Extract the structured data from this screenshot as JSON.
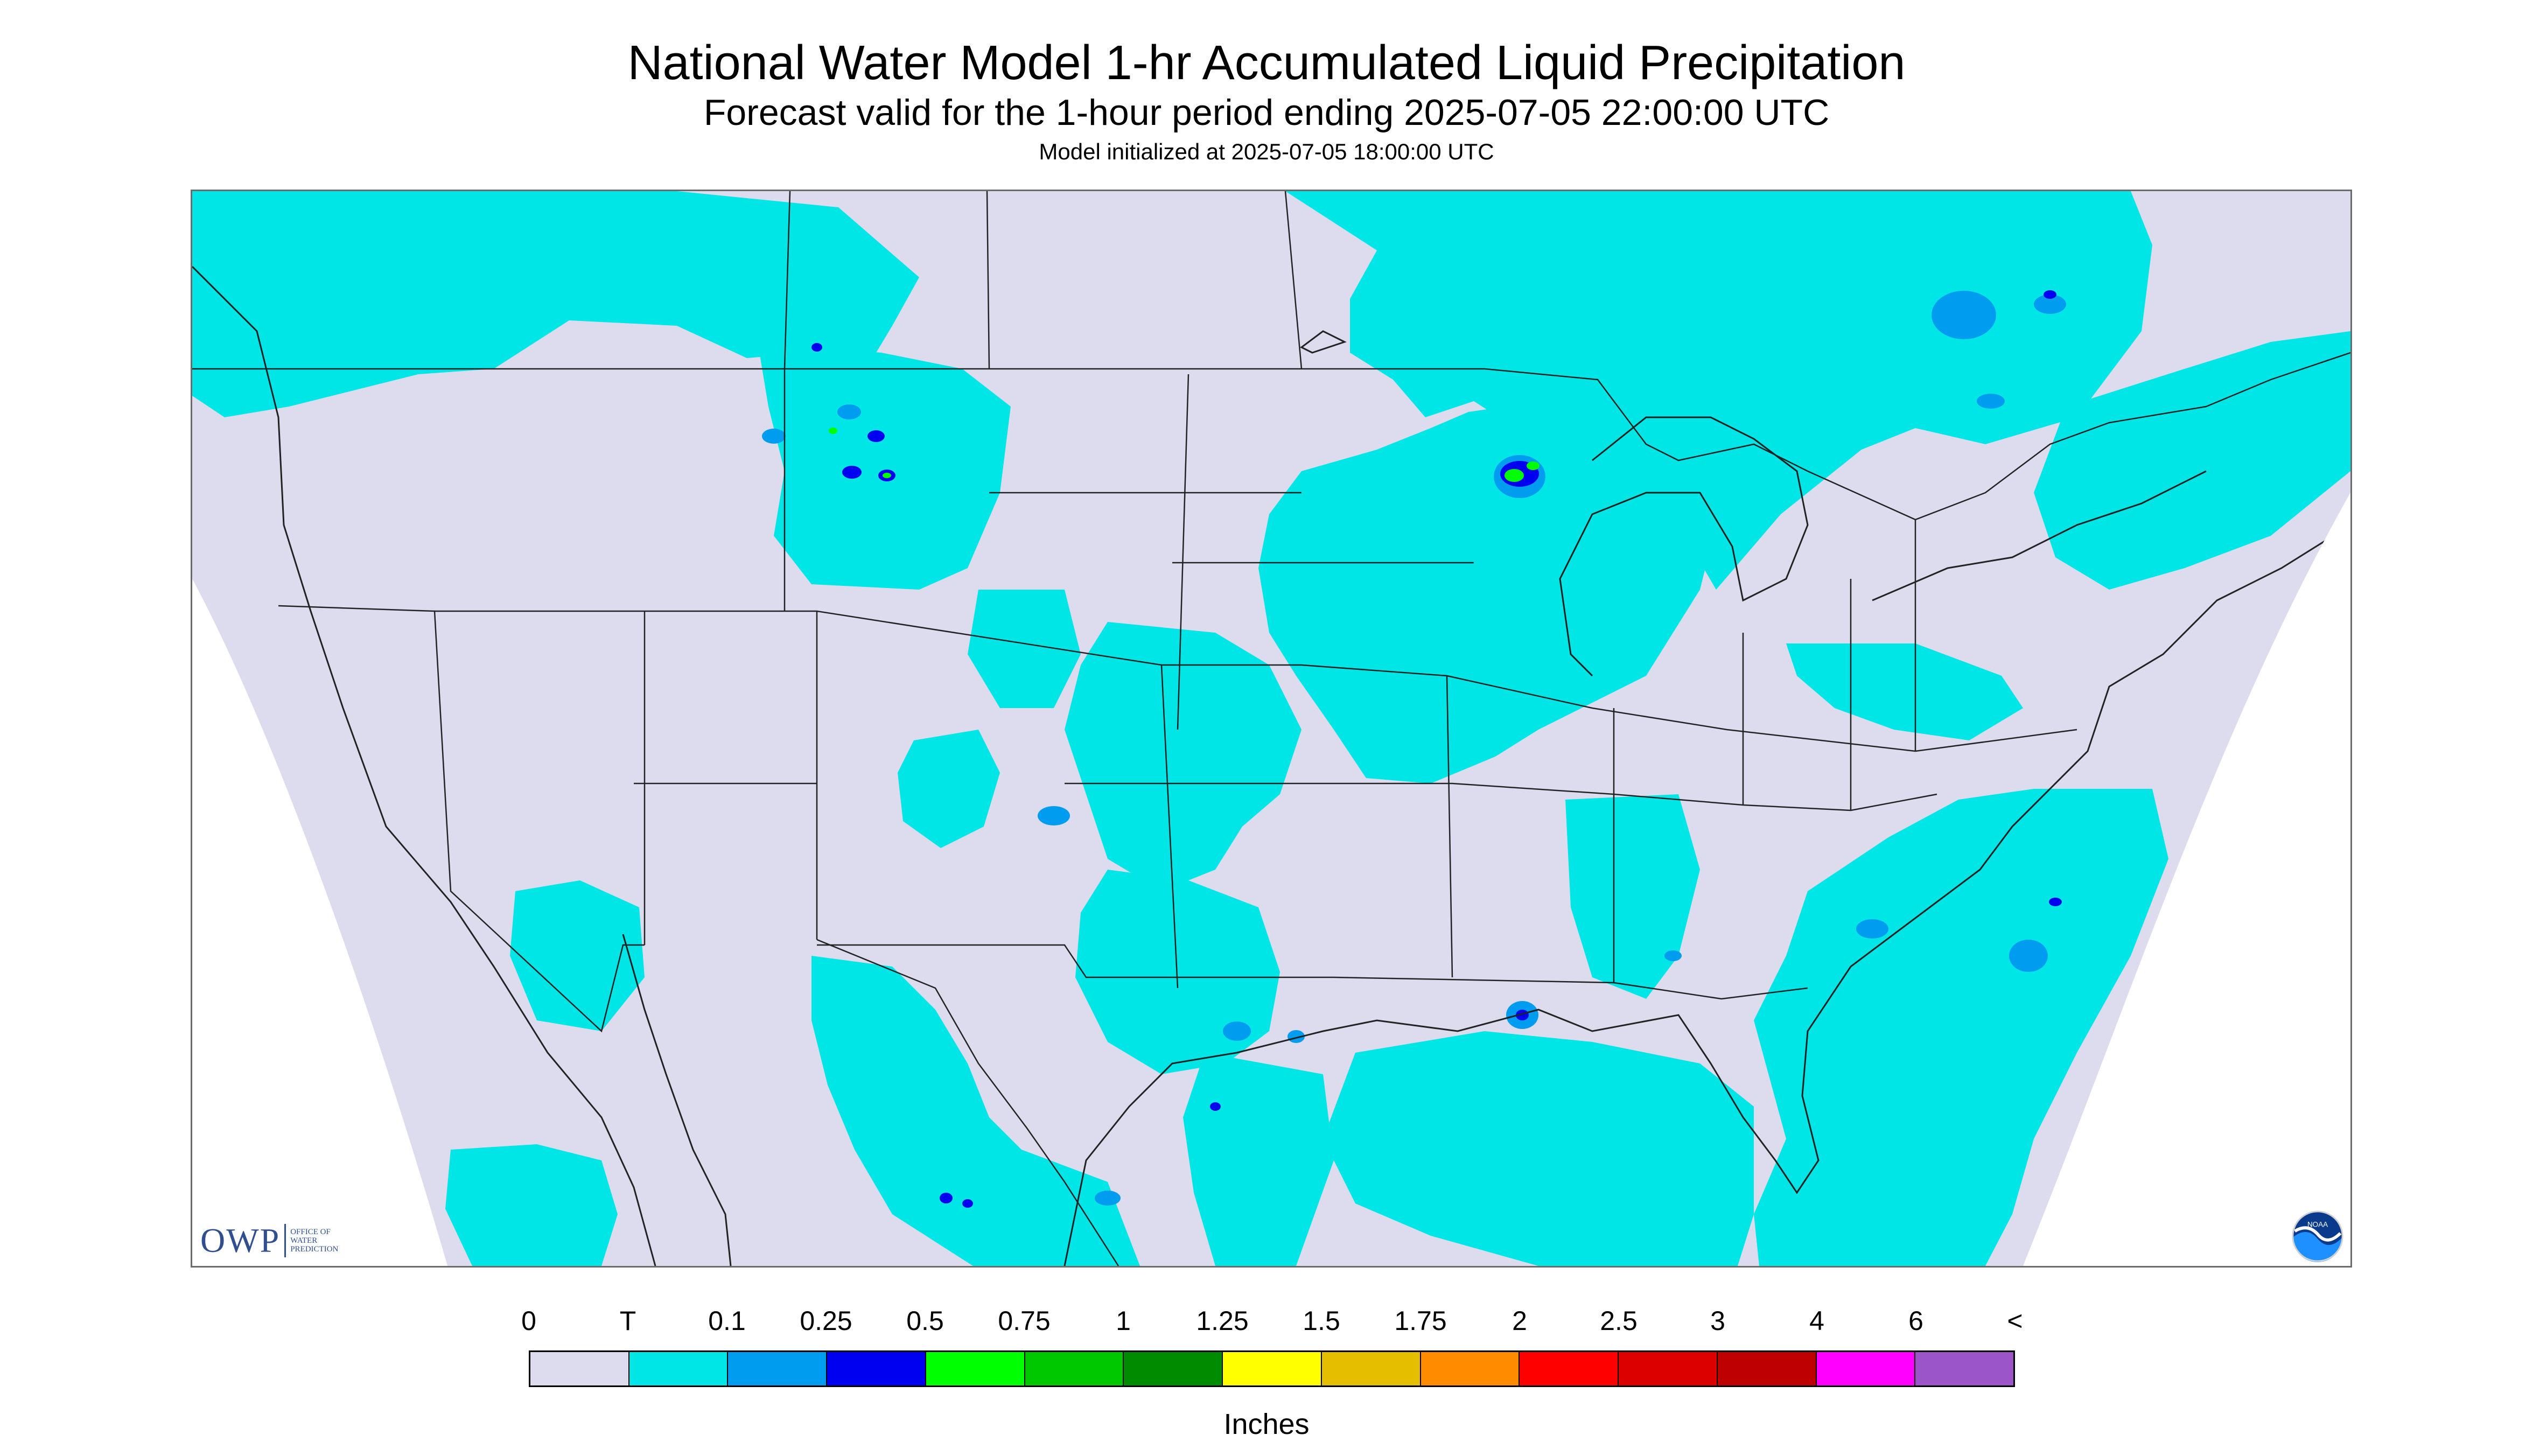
{
  "header": {
    "title": "National Water Model 1-hr Accumulated Liquid Precipitation",
    "subtitle": "Forecast valid for the 1-hour period ending 2025-07-05 22:00:00 UTC",
    "init": "Model initialized at 2025-07-05 18:00:00 UTC"
  },
  "map": {
    "background_color": "#dcdcee",
    "outside_color": "#ffffff",
    "line_color": "#222222"
  },
  "logos": {
    "owp_text": "OWP",
    "owp_sub": [
      "Office of",
      "Water",
      "Prediction"
    ],
    "noaa_text": "NOAA"
  },
  "legend": {
    "labels": [
      "0",
      "T",
      "0.1",
      "0.25",
      "0.5",
      "0.75",
      "1",
      "1.25",
      "1.5",
      "1.75",
      "2",
      "2.5",
      "3",
      "4",
      "6",
      "<"
    ],
    "colors": [
      "#dcdcee",
      "#00e5e5",
      "#009cef",
      "#0000f0",
      "#00ff00",
      "#00c800",
      "#008c00",
      "#ffff00",
      "#e6be00",
      "#ff8c00",
      "#ff0000",
      "#dc0000",
      "#be0000",
      "#ff00ff",
      "#9b55c8"
    ],
    "units": "Inches"
  }
}
